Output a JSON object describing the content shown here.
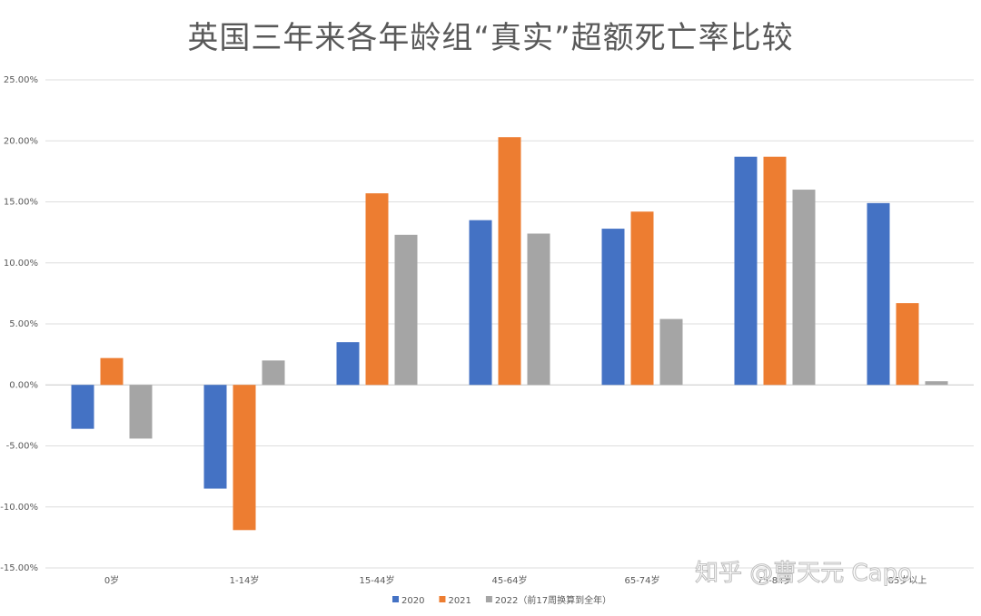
{
  "chart_data": {
    "type": "bar",
    "title": "英国三年来各年龄组“真实”超额死亡率比较",
    "categories": [
      "0岁",
      "1-14岁",
      "15-44岁",
      "45-64岁",
      "65-74岁",
      "75-84岁",
      "85岁以上"
    ],
    "series": [
      {
        "name": "2020",
        "color": "#4472C4",
        "values": [
          -3.6,
          -8.5,
          3.5,
          13.5,
          12.8,
          18.7,
          14.9
        ]
      },
      {
        "name": "2021",
        "color": "#ED7D31",
        "values": [
          2.2,
          -11.9,
          15.7,
          20.3,
          14.2,
          18.7,
          6.7
        ]
      },
      {
        "name": "2022（前17周换算到全年）",
        "color": "#A5A5A5",
        "values": [
          -4.4,
          2.0,
          12.3,
          12.4,
          5.4,
          16.0,
          0.3
        ]
      }
    ],
    "ylim": [
      -15,
      25
    ],
    "yticks": [
      "-15.00%",
      "-10.00%",
      "-5.00%",
      "0.00%",
      "5.00%",
      "10.00%",
      "15.00%",
      "20.00%",
      "25.00%"
    ],
    "ytick_values": [
      -15,
      -10,
      -5,
      0,
      5,
      10,
      15,
      20,
      25
    ],
    "grid": true,
    "legend_position": "bottom"
  },
  "watermark": "知乎 @曹天元 Capo"
}
